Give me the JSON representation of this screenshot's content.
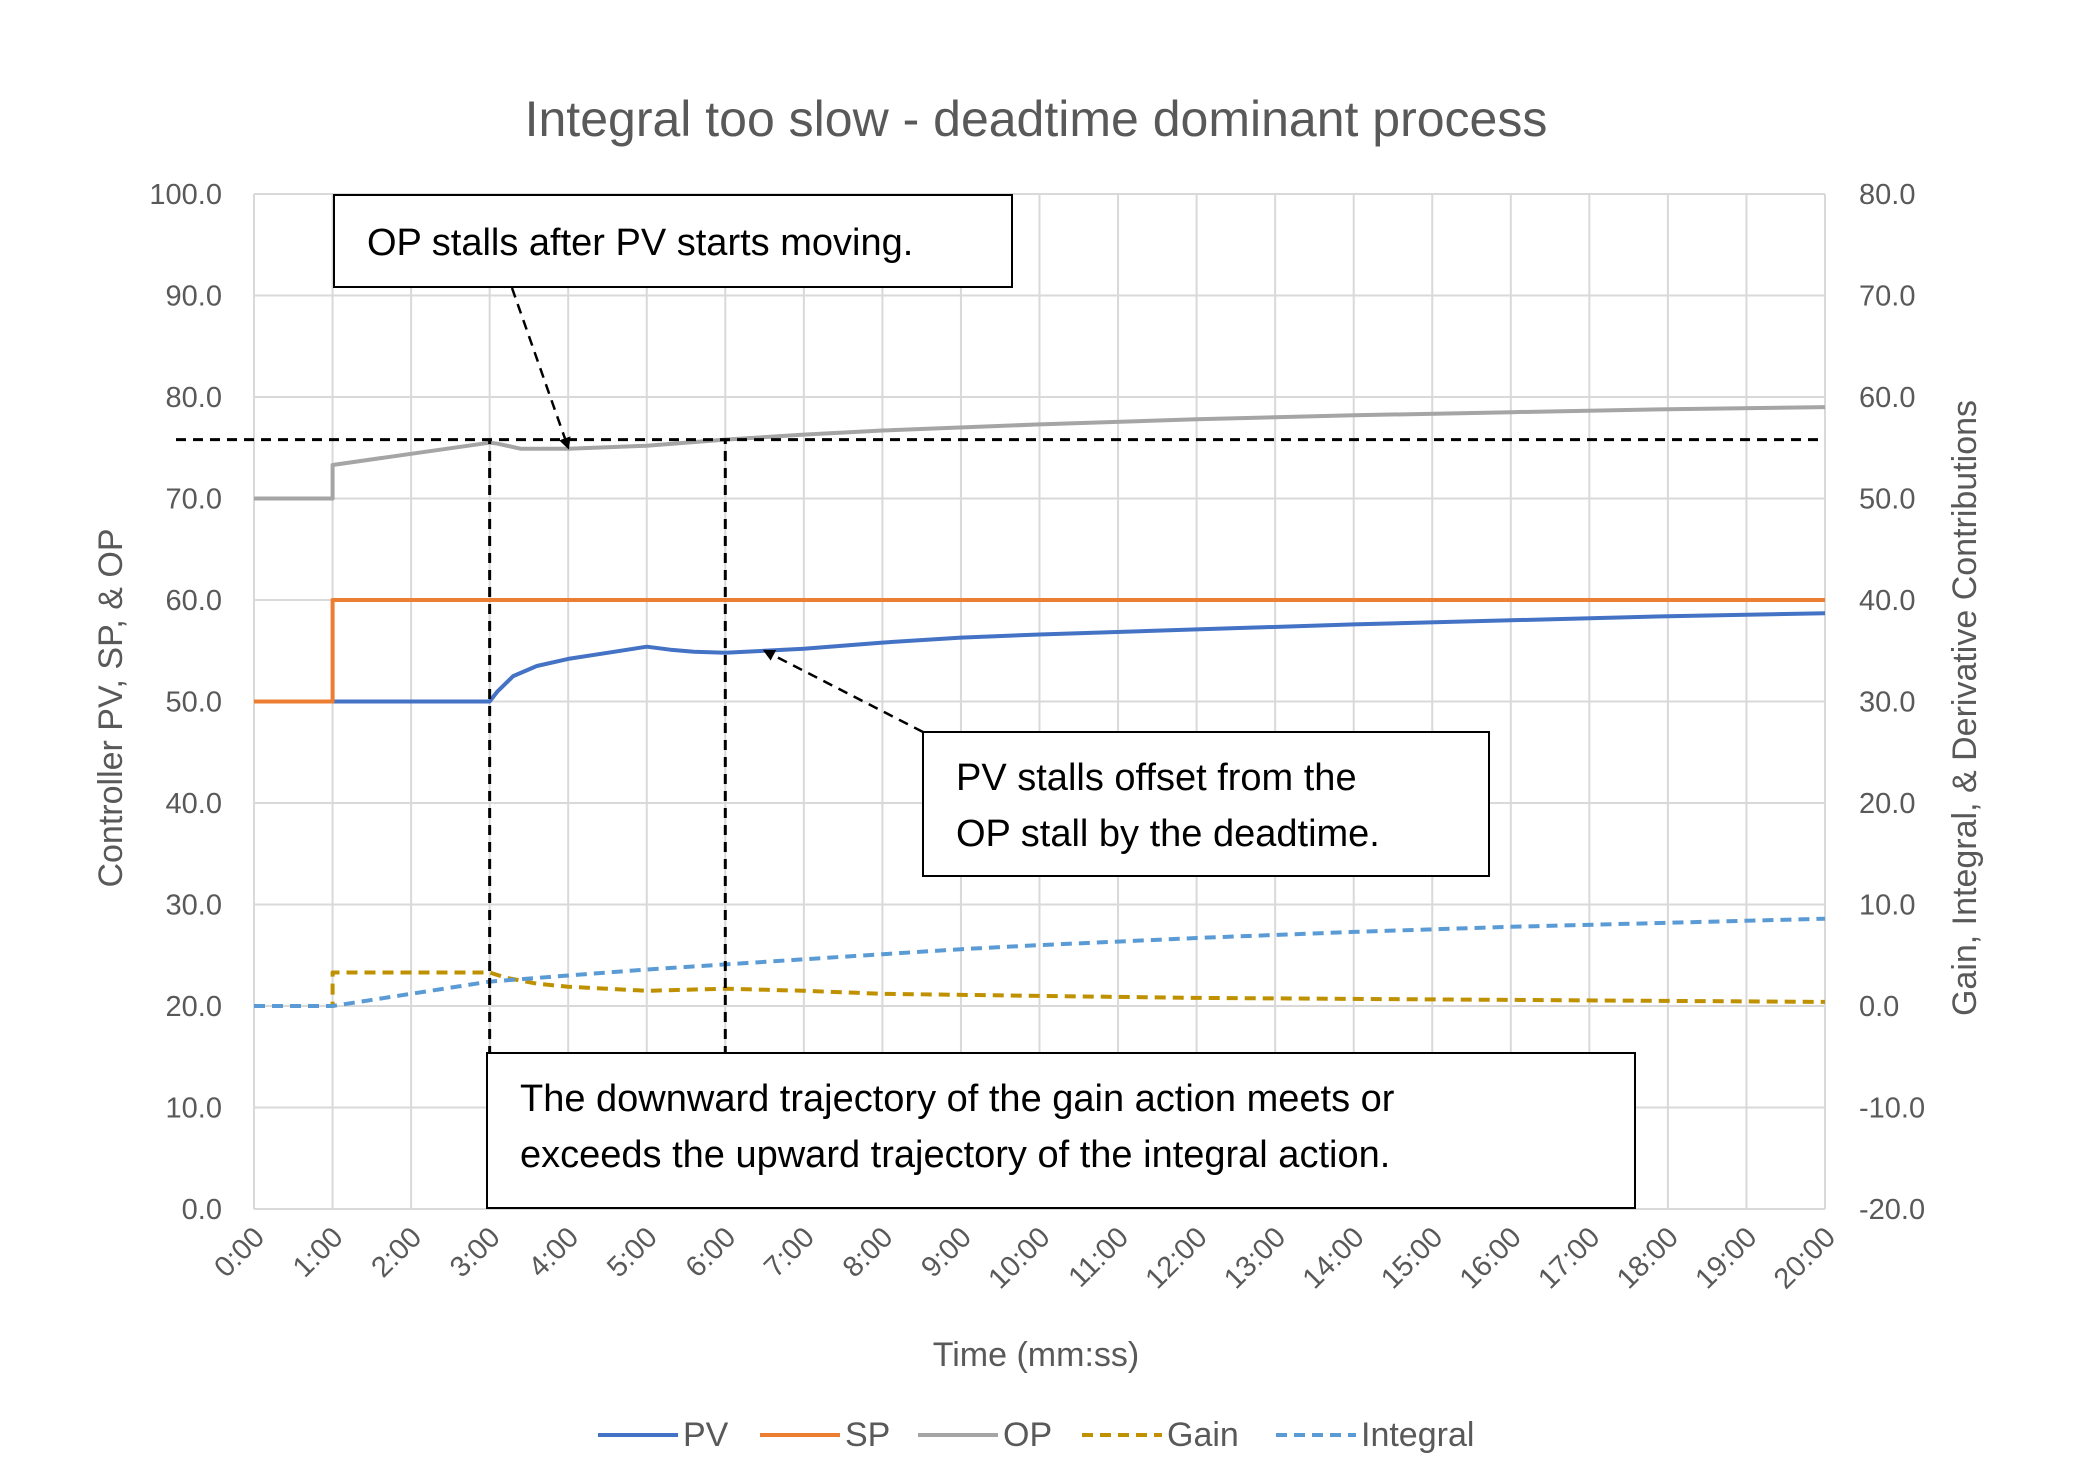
{
  "chart_data": {
    "type": "line",
    "title": "Integral too slow - deadtime dominant process",
    "xlabel": "Time (mm:ss)",
    "ylabel": "Controller PV, SP, & OP",
    "y2label": "Gain, Integral, & Derivative Contributions",
    "xlim": [
      0,
      20
    ],
    "ylim": [
      0,
      100
    ],
    "y2lim": [
      -20,
      80
    ],
    "grid": true,
    "legend_position": "bottom",
    "x_tick_labels": [
      "0:00",
      "1:00",
      "2:00",
      "3:00",
      "4:00",
      "5:00",
      "6:00",
      "7:00",
      "8:00",
      "9:00",
      "10:00",
      "11:00",
      "12:00",
      "13:00",
      "14:00",
      "15:00",
      "16:00",
      "17:00",
      "18:00",
      "19:00",
      "20:00"
    ],
    "y_tick_labels": [
      "0.0",
      "10.0",
      "20.0",
      "30.0",
      "40.0",
      "50.0",
      "60.0",
      "70.0",
      "80.0",
      "90.0",
      "100.0"
    ],
    "y2_tick_labels": [
      "-20.0",
      "-10.0",
      "0.0",
      "10.0",
      "20.0",
      "30.0",
      "40.0",
      "50.0",
      "60.0",
      "70.0",
      "80.0"
    ],
    "series": [
      {
        "name": "PV",
        "axis": "left",
        "color": "#4472c4",
        "dash": "solid",
        "points": [
          [
            0,
            50
          ],
          [
            3.0,
            50
          ],
          [
            3.1,
            51
          ],
          [
            3.3,
            52.5
          ],
          [
            3.6,
            53.5
          ],
          [
            4.0,
            54.2
          ],
          [
            4.5,
            54.8
          ],
          [
            5.0,
            55.4
          ],
          [
            5.3,
            55.1
          ],
          [
            5.6,
            54.9
          ],
          [
            6.0,
            54.8
          ],
          [
            6.5,
            55.0
          ],
          [
            7.0,
            55.2
          ],
          [
            8.0,
            55.8
          ],
          [
            9.0,
            56.3
          ],
          [
            10.0,
            56.6
          ],
          [
            12.0,
            57.1
          ],
          [
            14.0,
            57.6
          ],
          [
            16.0,
            58.0
          ],
          [
            18.0,
            58.4
          ],
          [
            20.0,
            58.7
          ]
        ]
      },
      {
        "name": "SP",
        "axis": "left",
        "color": "#ed7d31",
        "dash": "solid",
        "points": [
          [
            0,
            50
          ],
          [
            1.0,
            50
          ],
          [
            1.0,
            60
          ],
          [
            20.0,
            60
          ]
        ]
      },
      {
        "name": "OP",
        "axis": "left",
        "color": "#a5a5a5",
        "dash": "solid",
        "points": [
          [
            0,
            70
          ],
          [
            1.0,
            70
          ],
          [
            1.0,
            73.3
          ],
          [
            2.0,
            74.4
          ],
          [
            3.0,
            75.5
          ],
          [
            3.1,
            75.4
          ],
          [
            3.4,
            74.9
          ],
          [
            4.0,
            74.9
          ],
          [
            5.0,
            75.2
          ],
          [
            6.0,
            75.8
          ],
          [
            7.0,
            76.3
          ],
          [
            8.0,
            76.7
          ],
          [
            10.0,
            77.3
          ],
          [
            12.0,
            77.8
          ],
          [
            14.0,
            78.2
          ],
          [
            16.0,
            78.5
          ],
          [
            18.0,
            78.8
          ],
          [
            20.0,
            79.0
          ]
        ]
      },
      {
        "name": "Gain",
        "axis": "right",
        "color": "#bf9000",
        "dash": "dashed",
        "points": [
          [
            0,
            0
          ],
          [
            1.0,
            0
          ],
          [
            1.0,
            3.3
          ],
          [
            3.0,
            3.3
          ],
          [
            3.2,
            2.8
          ],
          [
            3.6,
            2.2
          ],
          [
            4.0,
            1.9
          ],
          [
            5.0,
            1.5
          ],
          [
            6.0,
            1.7
          ],
          [
            7.0,
            1.5
          ],
          [
            8.0,
            1.2
          ],
          [
            10.0,
            1.0
          ],
          [
            12.0,
            0.8
          ],
          [
            14.0,
            0.7
          ],
          [
            16.0,
            0.6
          ],
          [
            18.0,
            0.5
          ],
          [
            20.0,
            0.4
          ]
        ]
      },
      {
        "name": "Integral",
        "axis": "right",
        "color": "#5b9bd5",
        "dash": "dashed",
        "points": [
          [
            0,
            0
          ],
          [
            1.0,
            0
          ],
          [
            2.0,
            1.2
          ],
          [
            3.0,
            2.4
          ],
          [
            4.0,
            3.0
          ],
          [
            5.0,
            3.6
          ],
          [
            6.0,
            4.1
          ],
          [
            7.0,
            4.6
          ],
          [
            8.0,
            5.1
          ],
          [
            9.0,
            5.6
          ],
          [
            10.0,
            6.0
          ],
          [
            12.0,
            6.7
          ],
          [
            14.0,
            7.3
          ],
          [
            16.0,
            7.8
          ],
          [
            18.0,
            8.2
          ],
          [
            20.0,
            8.6
          ]
        ]
      }
    ],
    "reference_lines": [
      {
        "orientation": "horizontal",
        "axis": "left",
        "value": 75.8
      },
      {
        "orientation": "vertical",
        "x": 3.0,
        "y_from": 0,
        "y_to": 75.8
      },
      {
        "orientation": "vertical",
        "x": 6.0,
        "y_from": 0,
        "y_to": 75.8
      }
    ],
    "annotations": [
      {
        "text": [
          "OP stalls after PV starts moving."
        ],
        "arrow_to": [
          4.0,
          75.0
        ]
      },
      {
        "text": [
          "PV stalls offset from the",
          "OP stall by the deadtime."
        ],
        "arrow_to": [
          6.5,
          55.0
        ]
      },
      {
        "text": [
          "The downward trajectory of the gain action meets or",
          "exceeds the upward trajectory of the integral action."
        ]
      }
    ]
  }
}
